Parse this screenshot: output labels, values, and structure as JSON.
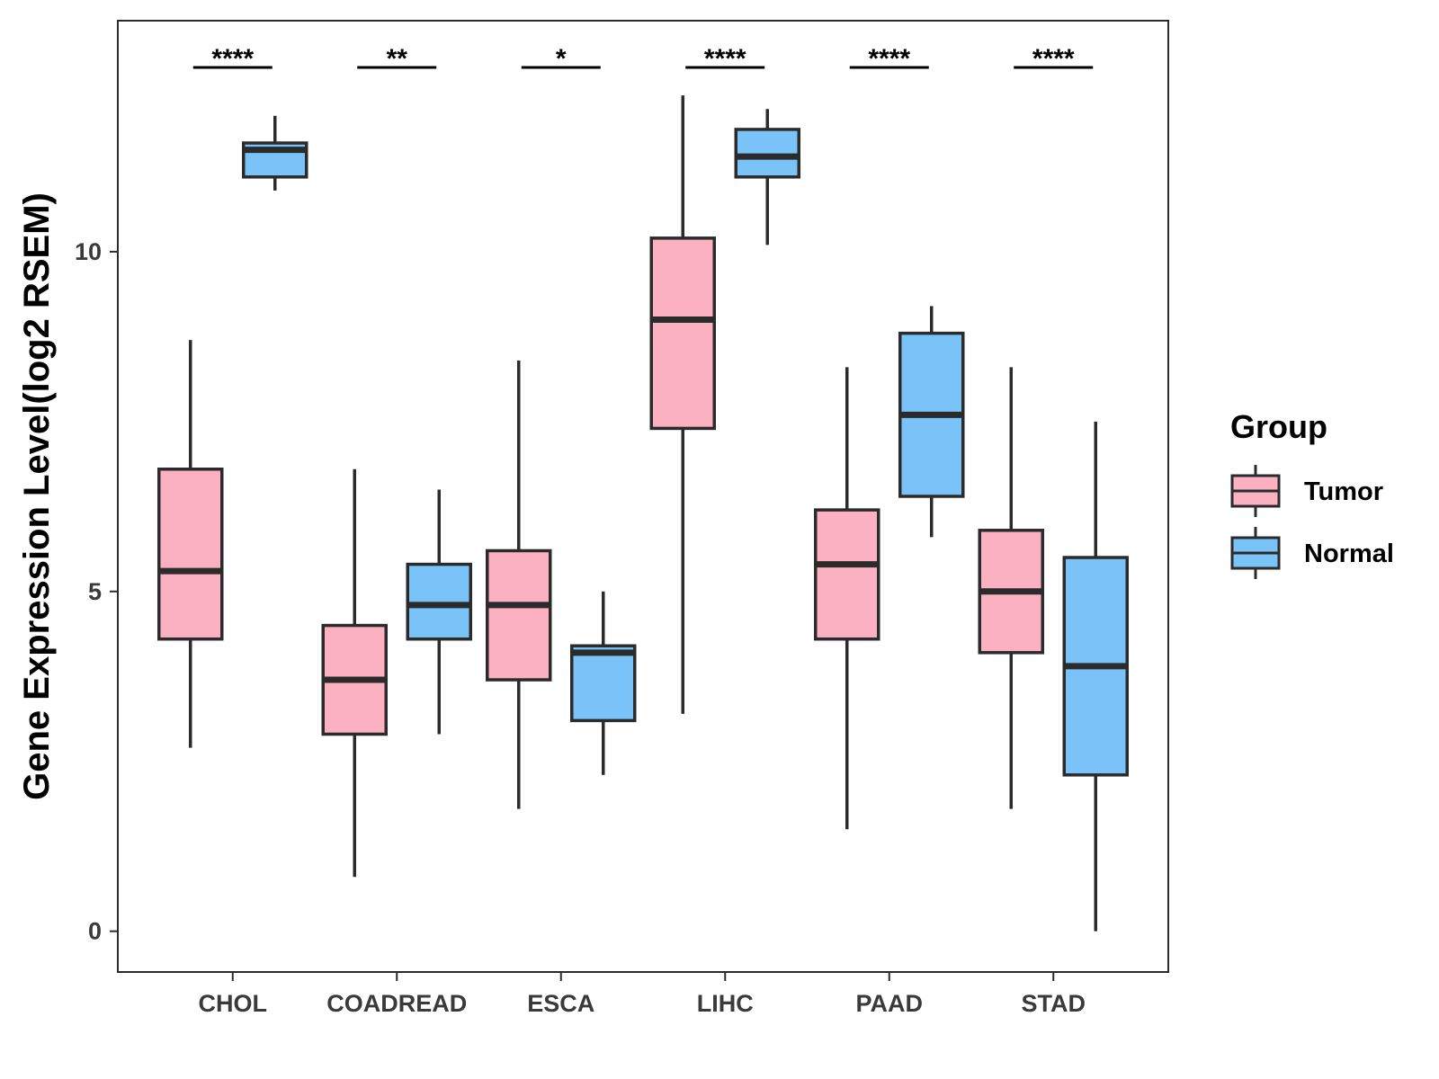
{
  "chart_data": {
    "type": "boxplot",
    "title": "",
    "xlabel": "",
    "ylabel": "Gene Expression Level(log2 RSEM)",
    "ylim": [
      -0.6,
      13.4
    ],
    "yticks": [
      0,
      5,
      10
    ],
    "ytick_labels": [
      "0",
      "5",
      "10"
    ],
    "grid": false,
    "legend": {
      "title": "Group",
      "position": "right",
      "entries": [
        {
          "name": "Tumor",
          "color": "#fbb1c2"
        },
        {
          "name": "Normal",
          "color": "#79c3f8"
        }
      ]
    },
    "categories": [
      "CHOL",
      "COADREAD",
      "ESCA",
      "LIHC",
      "PAAD",
      "STAD"
    ],
    "significance": [
      "****",
      "**",
      "*",
      "****",
      "****",
      "****"
    ],
    "series": [
      {
        "name": "Tumor",
        "color": "#fbb1c2",
        "boxes": [
          {
            "whisker_low": 2.7,
            "q1": 4.3,
            "median": 5.3,
            "q3": 6.8,
            "whisker_high": 8.7
          },
          {
            "whisker_low": 0.8,
            "q1": 2.9,
            "median": 3.7,
            "q3": 4.5,
            "whisker_high": 6.8
          },
          {
            "whisker_low": 1.8,
            "q1": 3.7,
            "median": 4.8,
            "q3": 5.6,
            "whisker_high": 8.4
          },
          {
            "whisker_low": 3.2,
            "q1": 7.4,
            "median": 9.0,
            "q3": 10.2,
            "whisker_high": 12.3
          },
          {
            "whisker_low": 1.5,
            "q1": 4.3,
            "median": 5.4,
            "q3": 6.2,
            "whisker_high": 8.3
          },
          {
            "whisker_low": 1.8,
            "q1": 4.1,
            "median": 5.0,
            "q3": 5.9,
            "whisker_high": 8.3
          }
        ]
      },
      {
        "name": "Normal",
        "color": "#79c3f8",
        "boxes": [
          {
            "whisker_low": 10.9,
            "q1": 11.1,
            "median": 11.5,
            "q3": 11.6,
            "whisker_high": 12.0
          },
          {
            "whisker_low": 2.9,
            "q1": 4.3,
            "median": 4.8,
            "q3": 5.4,
            "whisker_high": 6.5
          },
          {
            "whisker_low": 2.3,
            "q1": 3.1,
            "median": 4.1,
            "q3": 4.2,
            "whisker_high": 5.0
          },
          {
            "whisker_low": 10.1,
            "q1": 11.1,
            "median": 11.4,
            "q3": 11.8,
            "whisker_high": 12.1
          },
          {
            "whisker_low": 5.8,
            "q1": 6.4,
            "median": 7.6,
            "q3": 8.8,
            "whisker_high": 9.2
          },
          {
            "whisker_low": 0.0,
            "q1": 2.3,
            "median": 3.9,
            "q3": 5.5,
            "whisker_high": 7.5
          }
        ]
      }
    ]
  }
}
